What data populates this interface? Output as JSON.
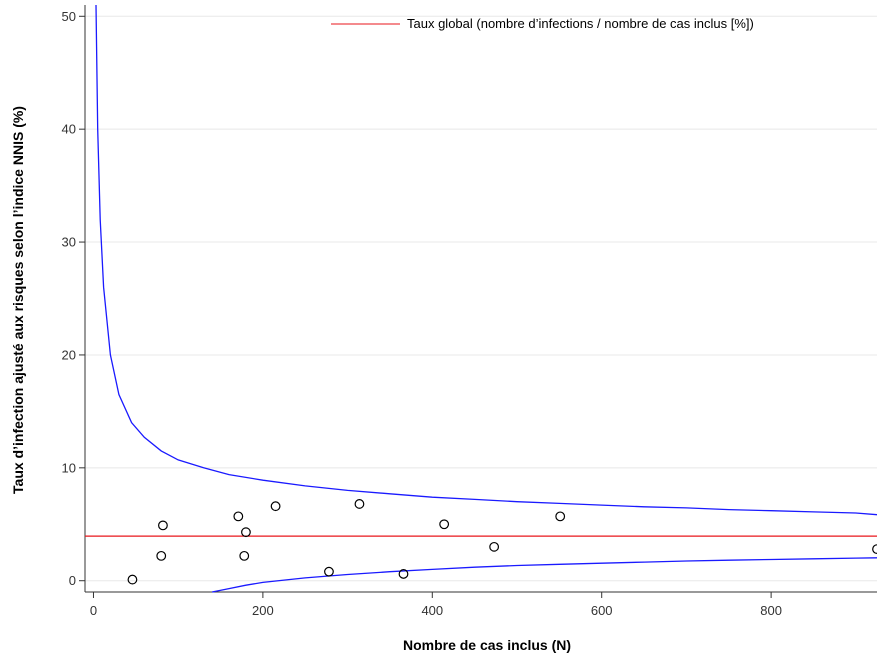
{
  "chart_data": {
    "type": "scatter",
    "xlabel": "Nombre de cas inclus (N)",
    "ylabel": "Taux d’infection ajusté aux risques selon l’indice NNIS (%)",
    "xlim": [
      -10,
      925
    ],
    "ylim": [
      -1,
      51
    ],
    "x_ticks": [
      0,
      200,
      400,
      600,
      800
    ],
    "y_ticks": [
      0,
      10,
      20,
      30,
      40,
      50
    ],
    "grid": "horizontal",
    "legend_position": "top-right",
    "colors": {
      "points": "#000000",
      "global_rate": "#e8161b",
      "control_limits": "#1a1aff",
      "grid": "#e8e8e8"
    },
    "global_rate": {
      "name": "Taux global (nombre d’infections / nombre de cas inclus [%])",
      "value": 3.95
    },
    "points": [
      {
        "x": 46,
        "y": 0.1
      },
      {
        "x": 80,
        "y": 2.2
      },
      {
        "x": 82,
        "y": 4.9
      },
      {
        "x": 171,
        "y": 5.7
      },
      {
        "x": 178,
        "y": 2.2
      },
      {
        "x": 180,
        "y": 4.3
      },
      {
        "x": 215,
        "y": 6.6
      },
      {
        "x": 278,
        "y": 0.8
      },
      {
        "x": 314,
        "y": 6.8
      },
      {
        "x": 366,
        "y": 0.6
      },
      {
        "x": 414,
        "y": 5.0
      },
      {
        "x": 473,
        "y": 3.0
      },
      {
        "x": 551,
        "y": 5.7
      },
      {
        "x": 925,
        "y": 2.8
      }
    ],
    "control_limits": {
      "upper": [
        [
          3,
          51
        ],
        [
          5,
          40
        ],
        [
          8,
          32
        ],
        [
          12,
          26
        ],
        [
          20,
          20
        ],
        [
          30,
          16.5
        ],
        [
          45,
          14
        ],
        [
          60,
          12.7
        ],
        [
          80,
          11.5
        ],
        [
          100,
          10.7
        ],
        [
          130,
          10
        ],
        [
          160,
          9.4
        ],
        [
          200,
          8.9
        ],
        [
          250,
          8.4
        ],
        [
          300,
          8
        ],
        [
          350,
          7.7
        ],
        [
          400,
          7.4
        ],
        [
          450,
          7.2
        ],
        [
          500,
          7.0
        ],
        [
          550,
          6.85
        ],
        [
          600,
          6.7
        ],
        [
          650,
          6.55
        ],
        [
          700,
          6.45
        ],
        [
          750,
          6.3
        ],
        [
          800,
          6.2
        ],
        [
          850,
          6.1
        ],
        [
          900,
          6.0
        ],
        [
          925,
          5.85
        ]
      ],
      "lower": [
        [
          140,
          -1
        ],
        [
          160,
          -0.7
        ],
        [
          180,
          -0.4
        ],
        [
          200,
          -0.15
        ],
        [
          250,
          0.25
        ],
        [
          300,
          0.55
        ],
        [
          350,
          0.8
        ],
        [
          400,
          1.0
        ],
        [
          450,
          1.2
        ],
        [
          500,
          1.35
        ],
        [
          550,
          1.45
        ],
        [
          600,
          1.55
        ],
        [
          650,
          1.65
        ],
        [
          700,
          1.75
        ],
        [
          750,
          1.82
        ],
        [
          800,
          1.88
        ],
        [
          850,
          1.94
        ],
        [
          900,
          2.0
        ],
        [
          925,
          2.03
        ]
      ]
    }
  }
}
